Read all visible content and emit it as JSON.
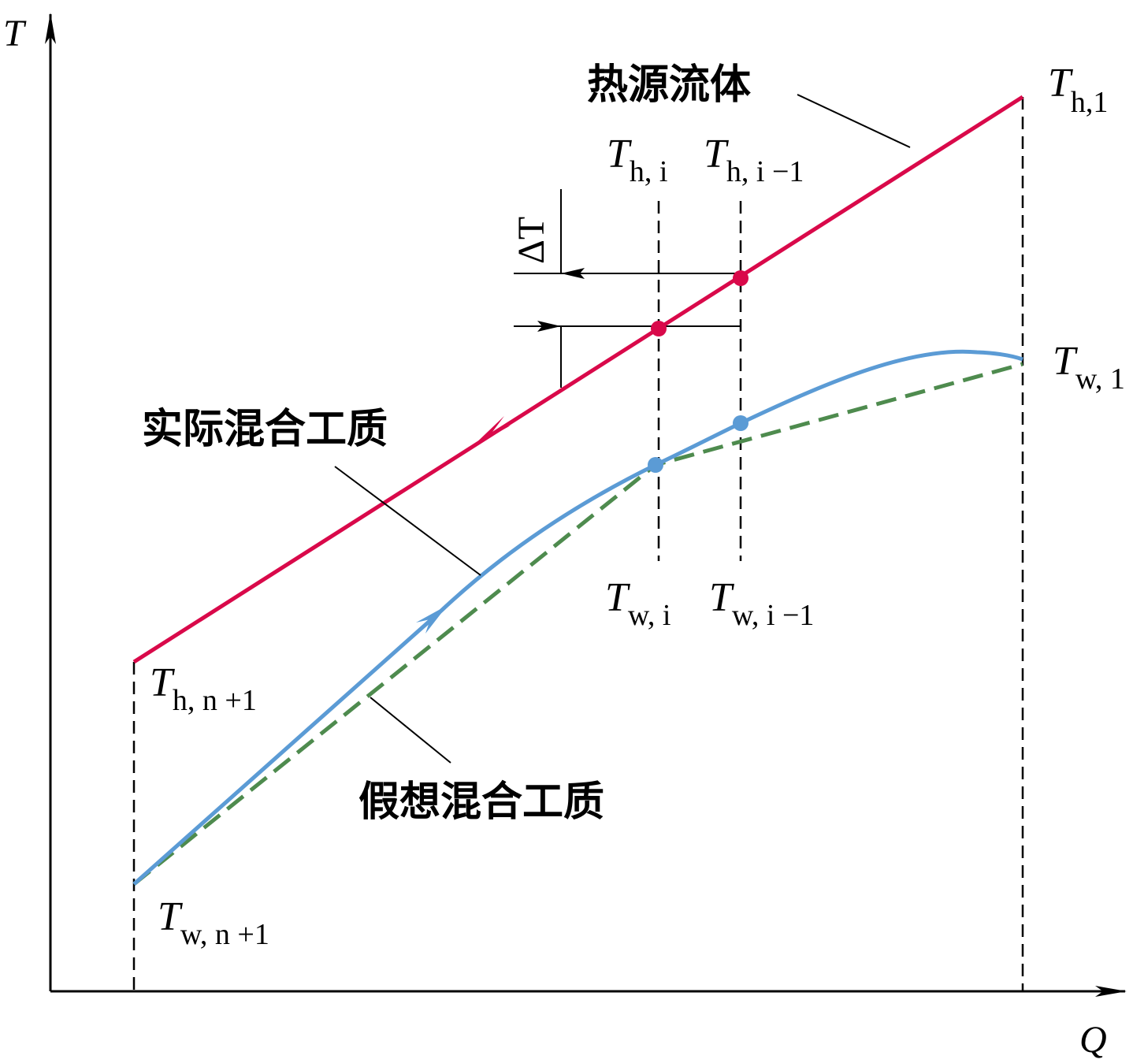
{
  "colors": {
    "hot_fluid": "#d9094a",
    "actual_mixture": "#5b9bd5",
    "ideal_mixture": "#4e8b4e",
    "axis": "#000000"
  },
  "axes": {
    "y_label": "T",
    "x_label": "Q"
  },
  "annotations": {
    "hot_fluid": "热源流体",
    "actual_mixture": "实际混合工质",
    "ideal_mixture": "假想混合工质",
    "delta_T": "ΔT"
  },
  "points": {
    "Th1": {
      "main": "T",
      "sub": "h,1"
    },
    "Thi": {
      "main": "T",
      "sub": "h, i"
    },
    "Thi1": {
      "main": "T",
      "sub": "h, i −1"
    },
    "Tw1": {
      "main": "T",
      "sub": "w, 1"
    },
    "Twi": {
      "main": "T",
      "sub": "w, i"
    },
    "Twi1": {
      "main": "T",
      "sub": "w, i −1"
    },
    "Thn1": {
      "main": "T",
      "sub": "h, n +1"
    },
    "Twn1": {
      "main": "T",
      "sub": "w, n +1"
    }
  }
}
